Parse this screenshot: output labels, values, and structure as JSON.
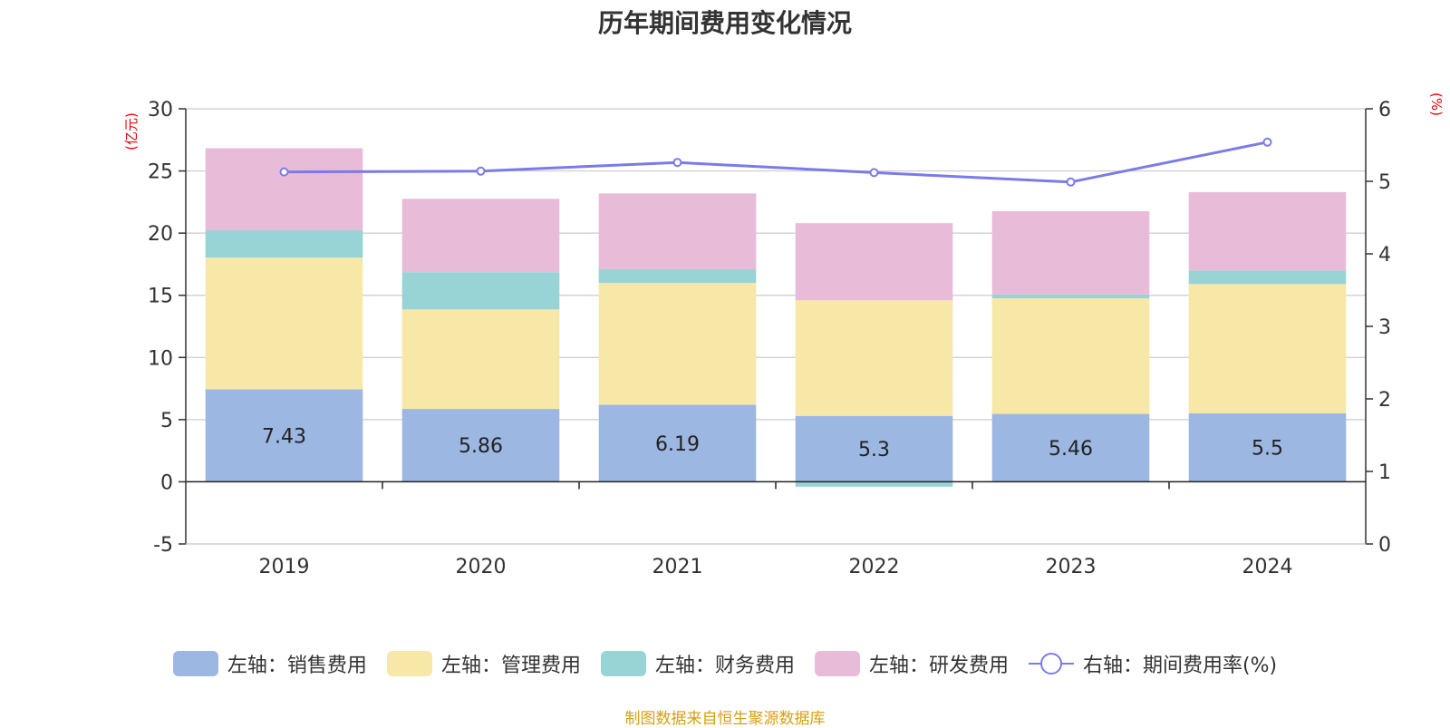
{
  "chart_data": {
    "type": "bar",
    "stacked": true,
    "title": "历年期间费用变化情况",
    "left_unit": "(亿元)",
    "right_unit": "(%)",
    "categories": [
      "2019",
      "2020",
      "2021",
      "2022",
      "2023",
      "2024"
    ],
    "left_ticks": [
      "-5",
      "0",
      "5",
      "10",
      "15",
      "20",
      "25",
      "30"
    ],
    "right_ticks": [
      "0",
      "1",
      "2",
      "3",
      "4",
      "5",
      "6"
    ],
    "ylim_left": [
      -5,
      30
    ],
    "ylim_right": [
      0,
      6
    ],
    "series": [
      {
        "name": "左轴：销售费用",
        "color": "#9db7e3",
        "values": [
          7.43,
          5.86,
          6.19,
          5.3,
          5.46,
          5.5
        ],
        "labels": [
          "7.43",
          "5.86",
          "6.19",
          "5.3",
          "5.46",
          "5.5"
        ]
      },
      {
        "name": "左轴：管理费用",
        "color": "#f7e8a8",
        "values": [
          10.6,
          8.0,
          9.8,
          9.3,
          9.3,
          10.4
        ]
      },
      {
        "name": "左轴：财务费用",
        "color": "#98d4d5",
        "values": [
          2.2,
          3.0,
          1.1,
          -0.4,
          0.3,
          1.1
        ]
      },
      {
        "name": "左轴：研发费用",
        "color": "#e8bbd9",
        "values": [
          6.6,
          5.9,
          6.1,
          6.2,
          6.7,
          6.3
        ]
      }
    ],
    "line_series": {
      "name": "右轴：期间费用率(%)",
      "color": "#7b7be8",
      "values": [
        5.13,
        5.14,
        5.26,
        5.12,
        4.99,
        5.54
      ]
    },
    "grid": true,
    "legend_position": "bottom"
  },
  "source_note": "制图数据来自恒生聚源数据库"
}
